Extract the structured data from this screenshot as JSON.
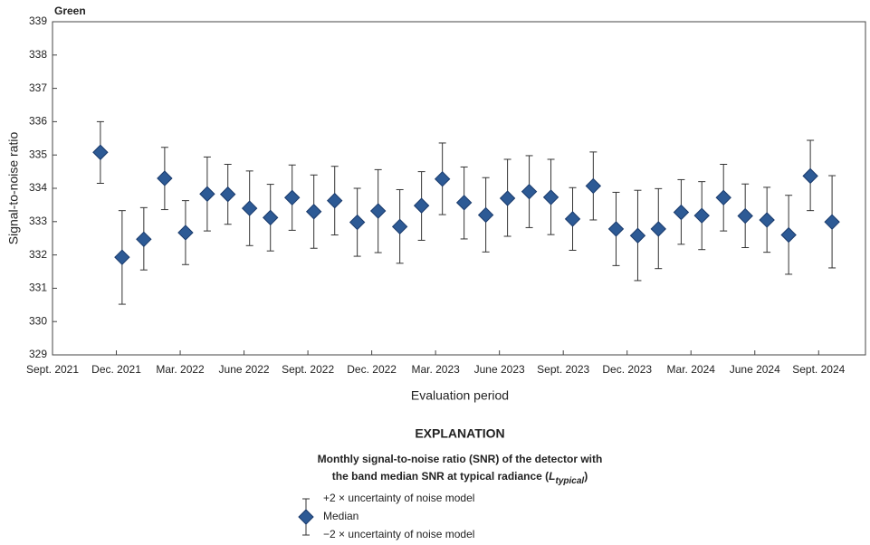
{
  "chart_data": {
    "type": "errorbar",
    "title": "Green",
    "ylabel": "Signal-to-noise ratio",
    "xlabel": "Evaluation period",
    "x": [
      2.25,
      3.27,
      4.29,
      5.27,
      6.25,
      7.27,
      8.24,
      9.26,
      10.24,
      11.26,
      12.28,
      13.26,
      14.32,
      15.3,
      16.32,
      17.34,
      18.32,
      19.34,
      20.36,
      21.38,
      22.4,
      23.42,
      24.44,
      25.41,
      26.48,
      27.5,
      28.47,
      29.54,
      30.51,
      31.53,
      32.55,
      33.57,
      34.59,
      35.61,
      36.63
    ],
    "series": [
      {
        "name": "Median",
        "color": "#2d5a95",
        "values": [
          335.08,
          331.93,
          332.47,
          334.3,
          332.67,
          333.83,
          333.82,
          333.4,
          333.12,
          333.72,
          333.3,
          333.63,
          332.98,
          333.32,
          332.85,
          333.48,
          334.28,
          333.57,
          333.2,
          333.7,
          333.9,
          333.73,
          333.08,
          334.07,
          332.78,
          332.58,
          332.78,
          333.28,
          333.18,
          333.72,
          333.17,
          333.05,
          332.6,
          334.37,
          332.99
        ],
        "upper": [
          336.0,
          333.33,
          333.42,
          335.23,
          333.63,
          334.94,
          334.72,
          334.52,
          334.12,
          334.7,
          334.4,
          334.66,
          334.0,
          334.56,
          333.96,
          334.5,
          335.36,
          334.64,
          334.32,
          334.87,
          334.98,
          334.87,
          334.02,
          335.09,
          333.88,
          333.94,
          333.99,
          334.26,
          334.2,
          334.72,
          334.13,
          334.03,
          333.79,
          335.44,
          334.38
        ],
        "lower": [
          334.15,
          330.52,
          331.55,
          333.36,
          331.71,
          332.72,
          332.92,
          332.28,
          332.12,
          332.74,
          332.2,
          332.6,
          331.96,
          332.07,
          331.75,
          332.44,
          333.21,
          332.48,
          332.09,
          332.56,
          332.82,
          332.61,
          332.14,
          333.05,
          331.68,
          331.23,
          331.59,
          332.32,
          332.16,
          332.72,
          332.22,
          332.08,
          331.42,
          333.33,
          331.61
        ]
      }
    ],
    "xlim": [
      0,
      38.2
    ],
    "ylim": [
      329,
      339
    ],
    "xticks": [
      {
        "value": 0,
        "label": "Sept. 2021"
      },
      {
        "value": 3,
        "label": "Dec. 2021"
      },
      {
        "value": 6,
        "label": "Mar. 2022"
      },
      {
        "value": 9,
        "label": "June 2022"
      },
      {
        "value": 12,
        "label": "Sept. 2022"
      },
      {
        "value": 15,
        "label": "Dec. 2022"
      },
      {
        "value": 18,
        "label": "Mar. 2023"
      },
      {
        "value": 21,
        "label": "June 2023"
      },
      {
        "value": 24,
        "label": "Sept. 2023"
      },
      {
        "value": 27,
        "label": "Dec. 2023"
      },
      {
        "value": 30,
        "label": "Mar. 2024"
      },
      {
        "value": 33,
        "label": "June 2024"
      },
      {
        "value": 36,
        "label": "Sept. 2024"
      }
    ],
    "yticks": [
      329,
      330,
      331,
      332,
      333,
      334,
      335,
      336,
      337,
      338,
      339
    ],
    "grid": false,
    "legend": {
      "title": "EXPLANATION",
      "heading_line1": "Monthly signal-to-noise ratio (SNR) of the detector with",
      "heading_line2": [
        "the band median SNR at typical radiance (",
        "L",
        "typical",
        ")"
      ],
      "upper_label": "+2 × uncertainty of noise model",
      "lower_label": "−2 × uncertainty of noise model"
    }
  }
}
